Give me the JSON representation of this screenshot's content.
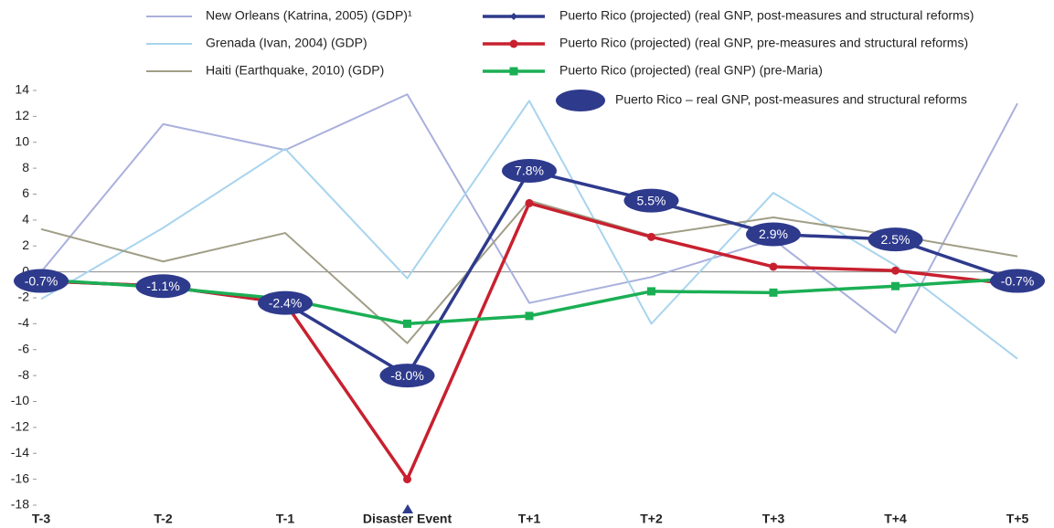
{
  "chart_data": {
    "type": "line",
    "categories": [
      "T-3",
      "T-2",
      "T-1",
      "Disaster Event",
      "T+1",
      "T+2",
      "T+3",
      "T+4",
      "T+5"
    ],
    "ylim": [
      -18,
      14
    ],
    "yticks": [
      -18,
      -16,
      -14,
      -12,
      -10,
      -8,
      -6,
      -4,
      -2,
      0,
      2,
      4,
      6,
      8,
      10,
      12,
      14
    ],
    "series": [
      {
        "name": "New Orleans (Katrina, 2005) (GDP)¹",
        "color": "#a9b0dc",
        "marker": "none",
        "width": 2,
        "values": [
          0,
          11.4,
          9.4,
          13.7,
          -2.4,
          -0.4,
          2.5,
          -4.7,
          13.0
        ]
      },
      {
        "name": "Grenada (Ivan, 2004) (GDP)",
        "color": "#a8d4ee",
        "marker": "none",
        "width": 2,
        "values": [
          -2.1,
          3.4,
          9.5,
          -0.5,
          13.2,
          -4.0,
          6.1,
          0.5,
          -6.7
        ]
      },
      {
        "name": "Haiti (Earthquake, 2010) (GDP)",
        "color": "#a09e86",
        "marker": "none",
        "width": 2,
        "values": [
          3.3,
          0.8,
          3.0,
          -5.5,
          5.5,
          2.8,
          4.2,
          2.8,
          1.2
        ]
      },
      {
        "name": "Puerto Rico (projected) (real GNP, post-measures and structural reforms)",
        "color": "#2e3a8c",
        "marker": "diamond",
        "width": 3.5,
        "values": [
          -0.7,
          -1.1,
          -2.4,
          -8.0,
          7.8,
          5.5,
          2.9,
          2.5,
          -0.7
        ],
        "value_labels": [
          "-0.7%",
          "-1.1%",
          "-2.4%",
          "-8.0%",
          "7.8%",
          "5.5%",
          "2.9%",
          "2.5%",
          "-0.7%"
        ]
      },
      {
        "name": "Puerto Rico (projected) (real GNP, pre-measures and structural reforms)",
        "color": "#c8202f",
        "marker": "circle",
        "width": 3.5,
        "values": [
          -0.7,
          -1.1,
          -2.4,
          -16.0,
          5.3,
          2.7,
          0.4,
          0.1,
          -1.0
        ]
      },
      {
        "name": "Puerto Rico (projected) (real GNP) (pre-Maria)",
        "color": "#1aaf54",
        "marker": "square",
        "width": 3.5,
        "values": [
          -0.6,
          -1.2,
          -2.1,
          -4.0,
          -3.4,
          -1.5,
          -1.6,
          -1.1,
          -0.5
        ]
      }
    ],
    "data_label_legend": "Puerto Rico – real GNP, post-measures and structural reforms",
    "data_label_color": "#2e3a8c"
  }
}
